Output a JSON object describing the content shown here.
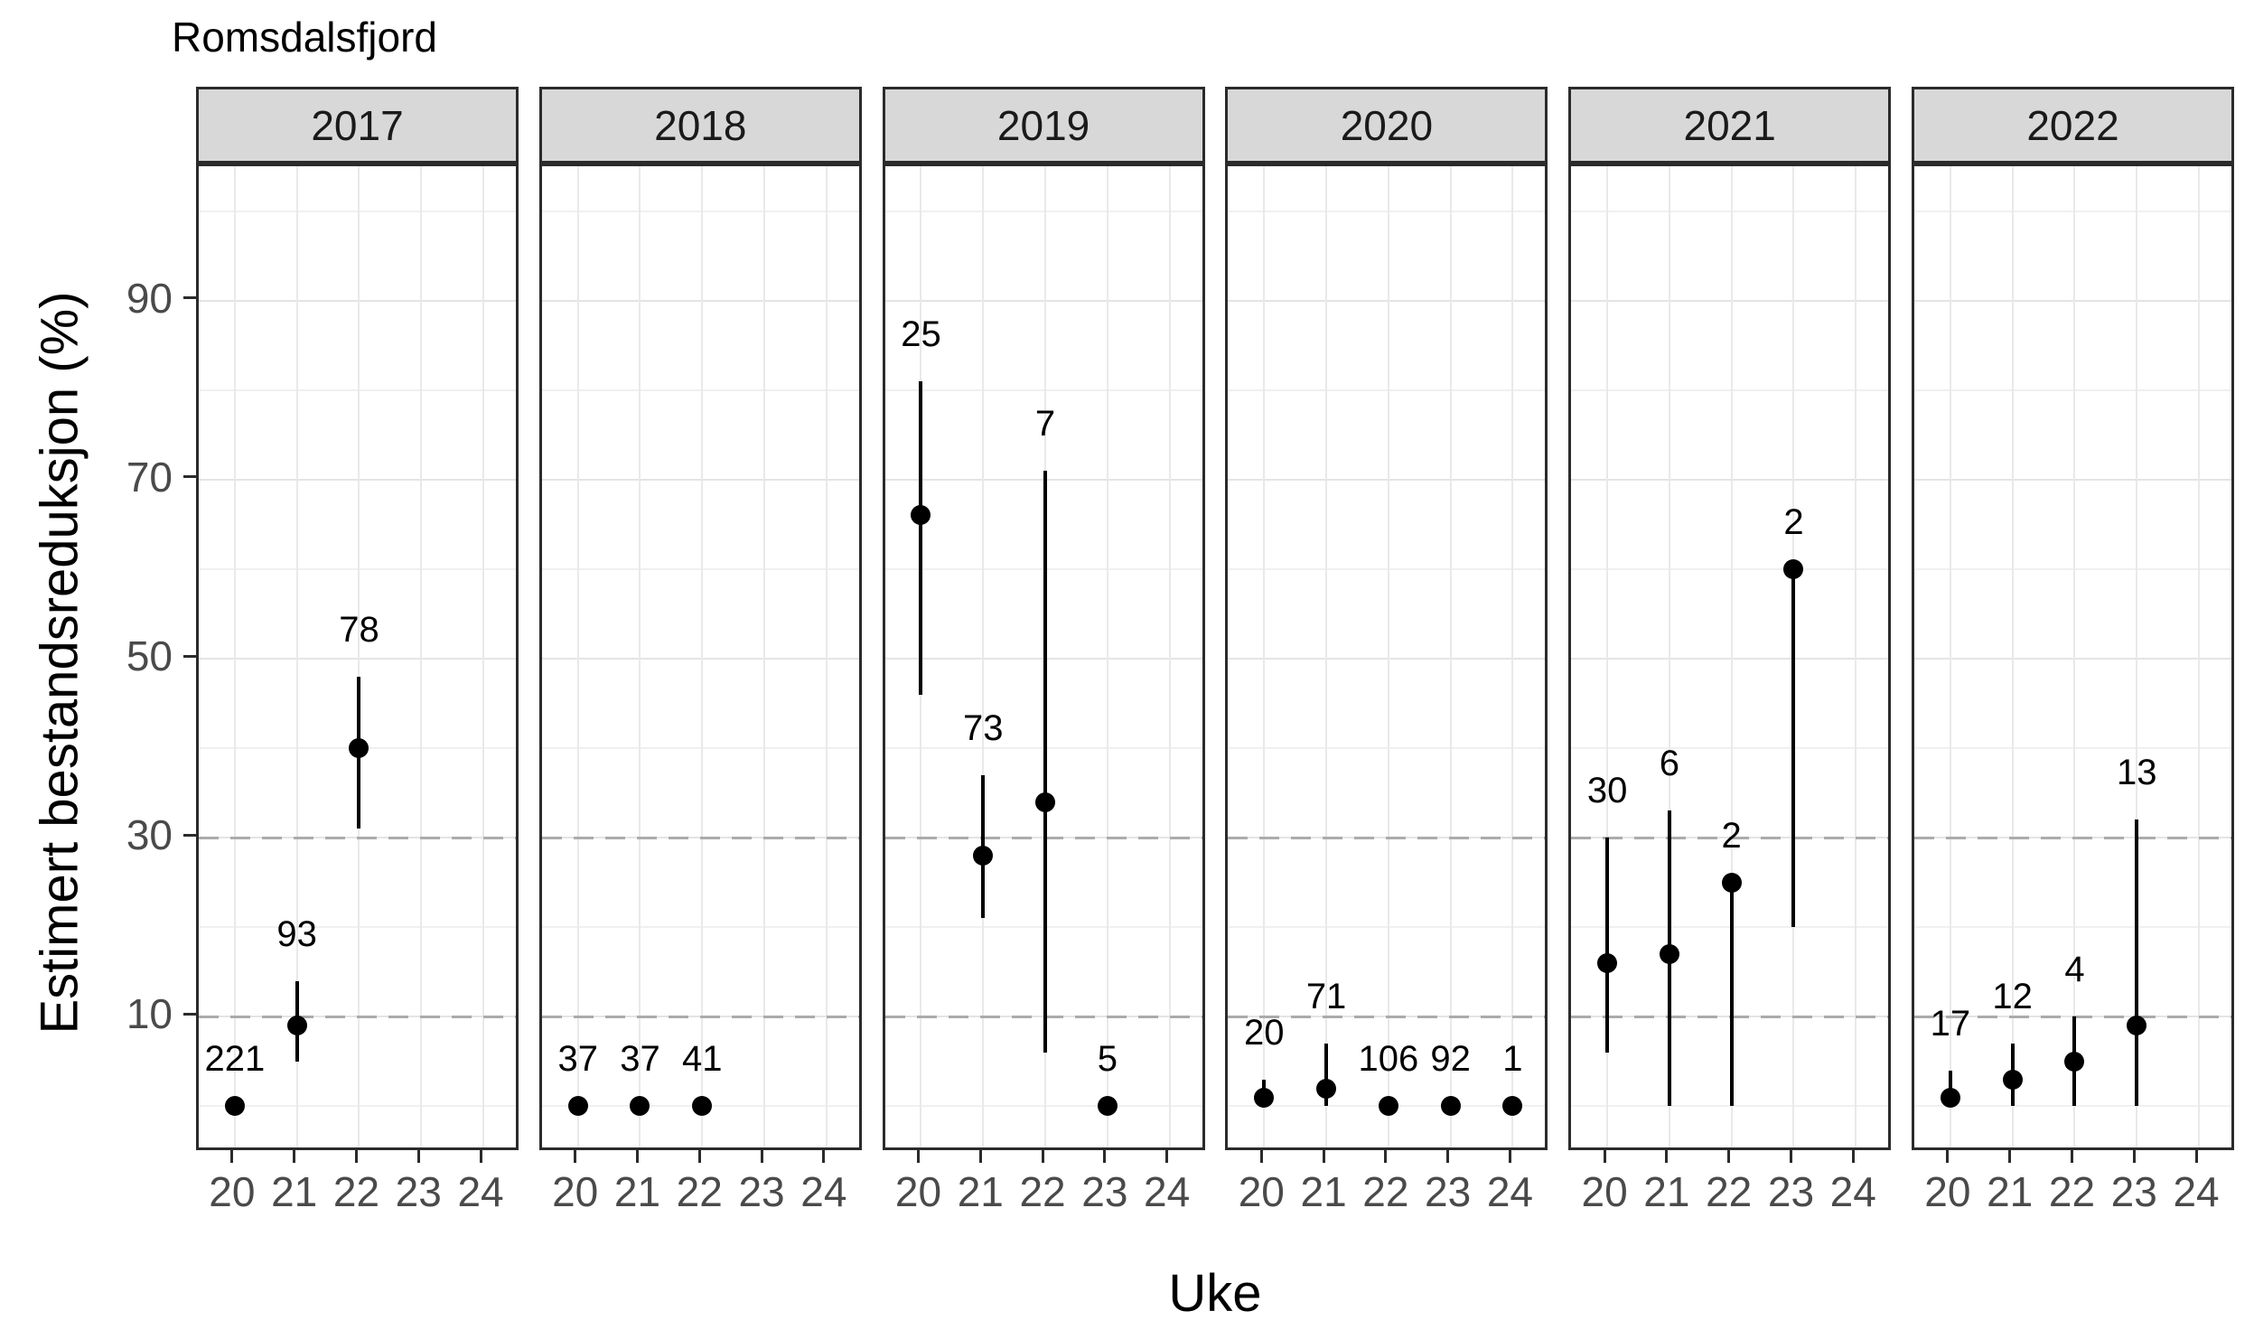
{
  "title": "Romsdalsfjord",
  "chart_data": {
    "type": "scatter",
    "subtype": "pointrange-faceted",
    "title": "Romsdalsfjord",
    "xlabel": "Uke",
    "ylabel": "Estimert bestandsreduksjon (%)",
    "x_ticks": [
      20,
      21,
      22,
      23,
      24
    ],
    "y_ticks": [
      90,
      70,
      50,
      30,
      10
    ],
    "y_minor_gridlines": [
      0,
      20,
      40,
      60,
      80,
      100
    ],
    "reference_lines_y": [
      30,
      10
    ],
    "ylim": [
      -5.2,
      105
    ],
    "xlim": [
      19.42,
      24.61
    ],
    "grid": "on",
    "legend": "none",
    "facets": [
      {
        "year": "2017",
        "points": [
          {
            "week": 20,
            "est": 0,
            "lo": null,
            "hi": null,
            "n": "221"
          },
          {
            "week": 21,
            "est": 9,
            "lo": 5,
            "hi": 14,
            "n": "93"
          },
          {
            "week": 22,
            "est": 40,
            "lo": 31,
            "hi": 48,
            "n": "78"
          }
        ]
      },
      {
        "year": "2018",
        "points": [
          {
            "week": 20,
            "est": 0,
            "lo": null,
            "hi": null,
            "n": "37"
          },
          {
            "week": 21,
            "est": 0,
            "lo": null,
            "hi": null,
            "n": "37"
          },
          {
            "week": 22,
            "est": 0,
            "lo": null,
            "hi": null,
            "n": "41"
          }
        ]
      },
      {
        "year": "2019",
        "points": [
          {
            "week": 20,
            "est": 66,
            "lo": 46,
            "hi": 81,
            "n": "25"
          },
          {
            "week": 21,
            "est": 28,
            "lo": 21,
            "hi": 37,
            "n": "73"
          },
          {
            "week": 22,
            "est": 34,
            "lo": 6,
            "hi": 71,
            "n": "7"
          },
          {
            "week": 23,
            "est": 0,
            "lo": null,
            "hi": null,
            "n": "5"
          }
        ]
      },
      {
        "year": "2020",
        "points": [
          {
            "week": 20,
            "est": 1,
            "lo": 0,
            "hi": 3,
            "n": "20"
          },
          {
            "week": 21,
            "est": 2,
            "lo": 0,
            "hi": 7,
            "n": "71"
          },
          {
            "week": 22,
            "est": 0,
            "lo": null,
            "hi": null,
            "n": "106"
          },
          {
            "week": 23,
            "est": 0,
            "lo": null,
            "hi": null,
            "n": "92"
          },
          {
            "week": 24,
            "est": 0,
            "lo": null,
            "hi": null,
            "n": "1"
          }
        ]
      },
      {
        "year": "2021",
        "points": [
          {
            "week": 20,
            "est": 16,
            "lo": 6,
            "hi": 30,
            "n": "30"
          },
          {
            "week": 21,
            "est": 17,
            "lo": 0,
            "hi": 33,
            "n": "6"
          },
          {
            "week": 22,
            "est": 25,
            "lo": 0,
            "hi": 25,
            "n": "2"
          },
          {
            "week": 23,
            "est": 60,
            "lo": 20,
            "hi": 60,
            "n": "2"
          }
        ]
      },
      {
        "year": "2022",
        "points": [
          {
            "week": 20,
            "est": 1,
            "lo": 0,
            "hi": 4,
            "n": "17"
          },
          {
            "week": 21,
            "est": 3,
            "lo": 0,
            "hi": 7,
            "n": "12"
          },
          {
            "week": 22,
            "est": 5,
            "lo": 0,
            "hi": 10,
            "n": "4"
          },
          {
            "week": 23,
            "est": 9,
            "lo": 0,
            "hi": 32,
            "n": "13"
          }
        ]
      }
    ],
    "colors": {
      "point": "#000000",
      "error_bar": "#000000",
      "strip_fill": "#d8d8d8",
      "panel_border": "#2b2b2b",
      "grid_major": "#e4e4e4",
      "grid_minor": "#f0f0f0",
      "reference_line": "#ababab",
      "axis_text": "#4a4a4a"
    }
  }
}
